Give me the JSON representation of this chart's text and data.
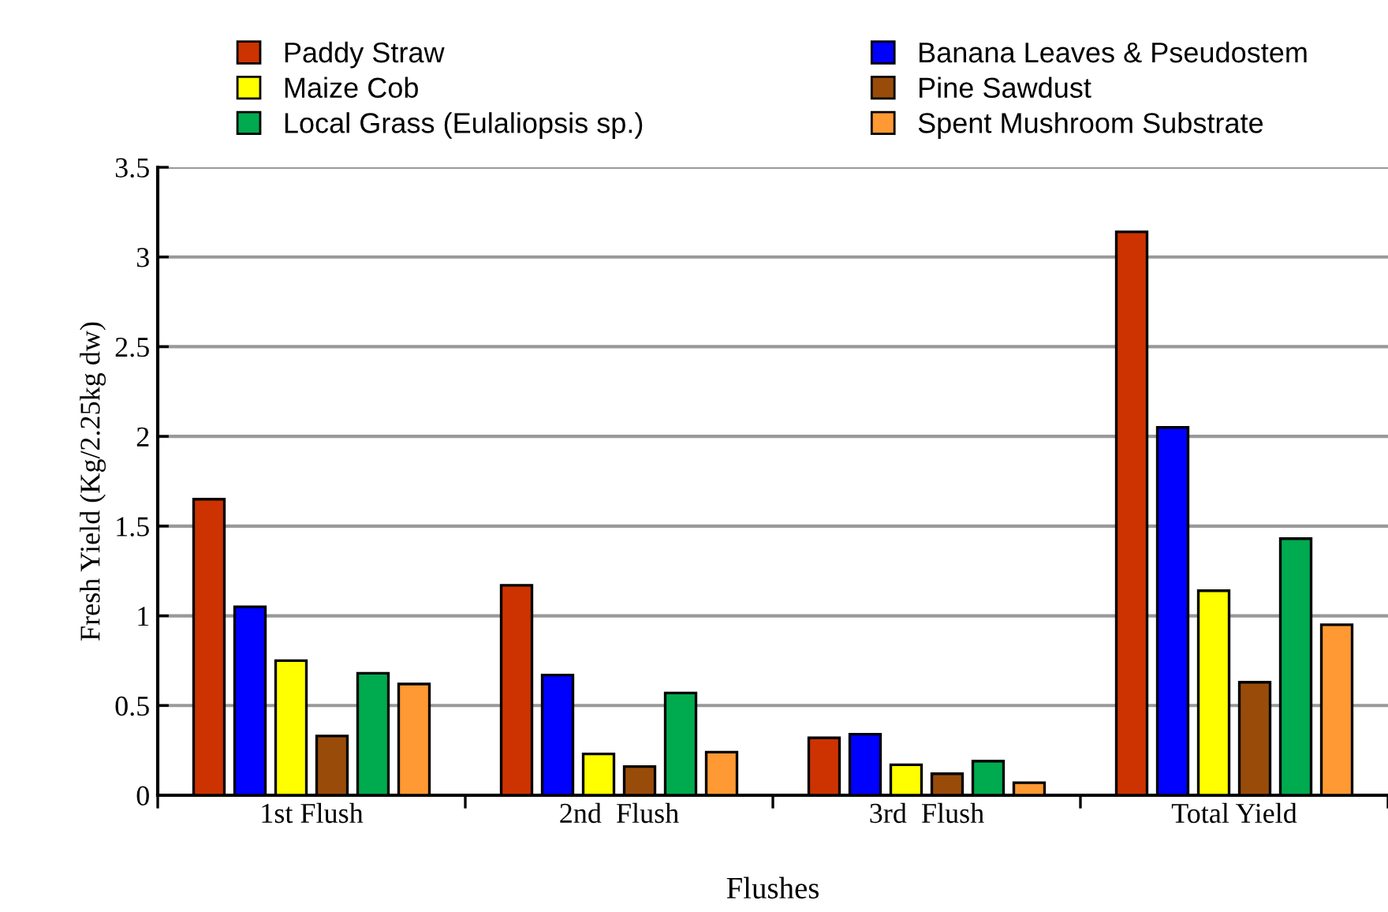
{
  "chart_data": {
    "type": "bar",
    "xlabel": "Flushes",
    "ylabel": "Fresh Yield (Kg/2.25kg dw)",
    "categories": [
      "1st Flush",
      "2nd  Flush",
      "3rd  Flush",
      "Total Yield"
    ],
    "series": [
      {
        "name": "Paddy Straw",
        "color": "#cc3300",
        "values": [
          1.65,
          1.17,
          0.32,
          3.14
        ]
      },
      {
        "name": "Banana Leaves & Pseudostem",
        "color": "#0000ff",
        "values": [
          1.05,
          0.67,
          0.34,
          2.05
        ]
      },
      {
        "name": "Maize Cob",
        "color": "#ffff00",
        "values": [
          0.75,
          0.23,
          0.17,
          1.14
        ]
      },
      {
        "name": "Pine Sawdust",
        "color": "#994c0a",
        "values": [
          0.33,
          0.16,
          0.12,
          0.63
        ]
      },
      {
        "name": "Local Grass (Eulaliopsis sp.)",
        "color": "#00aa4f",
        "values": [
          0.68,
          0.57,
          0.19,
          1.43
        ]
      },
      {
        "name": "Spent Mushroom Substrate",
        "color": "#ff9933",
        "values": [
          0.62,
          0.24,
          0.07,
          0.95
        ]
      }
    ],
    "ylim": [
      0,
      3.5
    ],
    "yticks": [
      0,
      0.5,
      1,
      1.5,
      2,
      2.5,
      3,
      3.5
    ],
    "grid": "y",
    "legend": "top"
  }
}
